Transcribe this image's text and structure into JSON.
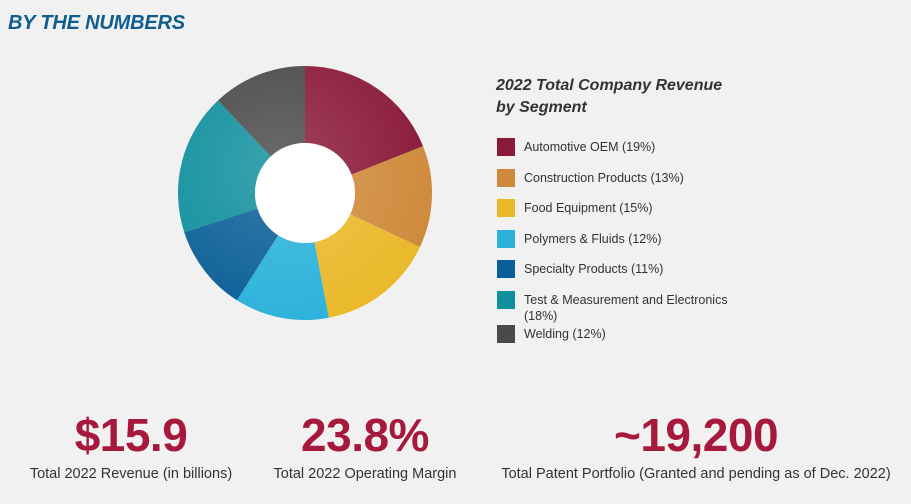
{
  "section_title": "BY THE NUMBERS",
  "chart_data": {
    "type": "pie",
    "title": "2022 Total Company Revenue by Segment",
    "title_lines": [
      "2022 Total Company Revenue",
      "by Segment"
    ],
    "legend_position": "right",
    "slices": [
      {
        "label": "Automotive OEM (19%)",
        "value": 19,
        "color": "#8b1a3a"
      },
      {
        "label": "Construction Products (13%)",
        "value": 13,
        "color": "#cf8a3b"
      },
      {
        "label": "Food Equipment (15%)",
        "value": 15,
        "color": "#eab92a"
      },
      {
        "label": "Polymers & Fluids (12%)",
        "value": 12,
        "color": "#2bb2db"
      },
      {
        "label": "Specialty Products (11%)",
        "value": 11,
        "color": "#0b5f98"
      },
      {
        "label": "Test & Measurement and Electronics (18%)",
        "value": 18,
        "color": "#0f8f9d"
      },
      {
        "label": "Welding (12%)",
        "value": 12,
        "color": "#4a4a4a"
      }
    ]
  },
  "stats": [
    {
      "value": "$15.9",
      "caption": "Total 2022 Revenue (in billions)"
    },
    {
      "value": "23.8%",
      "caption": "Total 2022 Operating Margin"
    },
    {
      "value": "~19,200",
      "caption": "Total Patent Portfolio (Granted and pending as of Dec. 2022)"
    }
  ]
}
